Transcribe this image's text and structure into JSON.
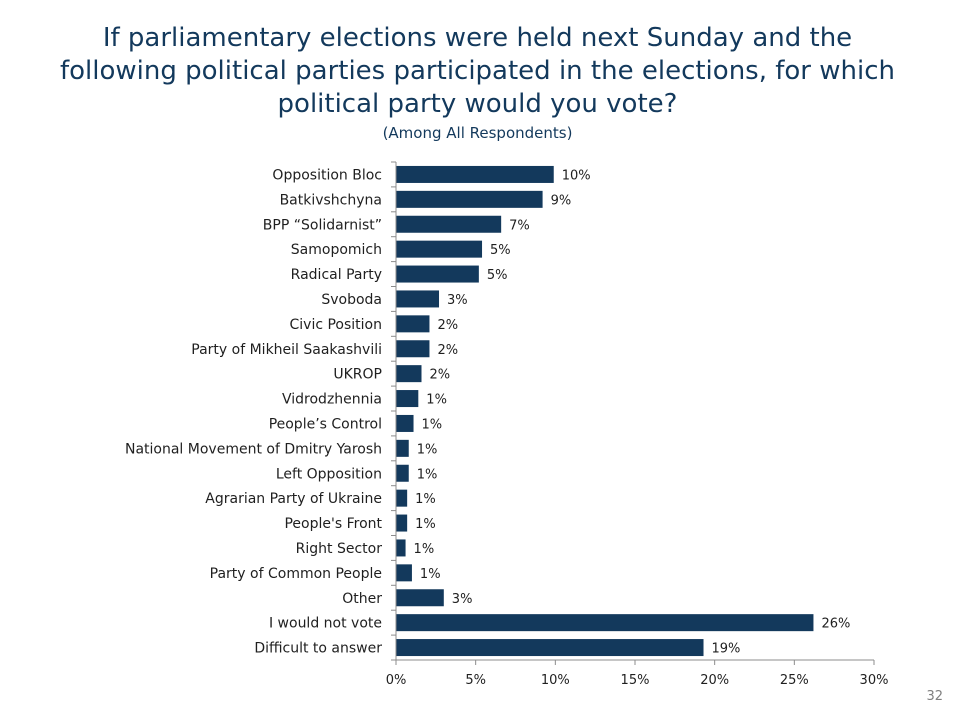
{
  "page": {
    "title_lines": [
      "If parliamentary elections were held next Sunday and the",
      "following political parties participated in the elections, for which",
      "political party would you vote?"
    ],
    "subtitle": "(Among All Respondents)",
    "page_number": "32"
  },
  "colors": {
    "bar": "#13395c",
    "title": "#13395c",
    "text": "#1f1f1f",
    "axis": "#8c8c8c"
  },
  "chart_data": {
    "type": "bar",
    "orientation": "horizontal",
    "title": "If parliamentary elections were held next Sunday and the following political parties participated in the elections, for which political party would you vote?",
    "subtitle": "(Among All Respondents)",
    "categories": [
      "Opposition Bloc",
      "Batkivshchyna",
      "BPP “Solidarnist”",
      "Samopomich",
      "Radical Party",
      "Svoboda",
      "Civic Position",
      "Party of Mikheil Saakashvili",
      "UKROP",
      "Vidrodzhennia",
      "People’s Control",
      "National Movement of Dmitry Yarosh",
      "Left Opposition",
      "Agrarian Party of Ukraine",
      "People's Front",
      "Right Sector",
      "Party of Common People",
      "Other",
      "I would not vote",
      "Difficult to answer"
    ],
    "values": [
      9.9,
      9.2,
      6.6,
      5.4,
      5.2,
      2.7,
      2.1,
      2.1,
      1.6,
      1.4,
      1.1,
      0.8,
      0.8,
      0.7,
      0.7,
      0.6,
      1.0,
      3.0,
      26.2,
      19.3
    ],
    "data_labels": [
      "10%",
      "9%",
      "7%",
      "5%",
      "5%",
      "3%",
      "2%",
      "2%",
      "2%",
      "1%",
      "1%",
      "1%",
      "1%",
      "1%",
      "1%",
      "1%",
      "1%",
      "3%",
      "26%",
      "19%"
    ],
    "xlim": [
      0,
      30
    ],
    "x_ticks": [
      0,
      5,
      10,
      15,
      20,
      25,
      30
    ],
    "x_tick_labels": [
      "0%",
      "5%",
      "10%",
      "15%",
      "20%",
      "25%",
      "30%"
    ],
    "xlabel": "",
    "ylabel": "",
    "grid": false,
    "legend": "none"
  }
}
